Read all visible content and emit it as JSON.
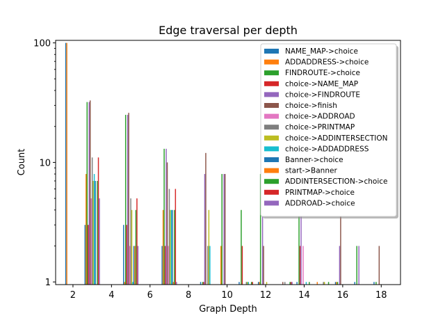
{
  "chart_data": {
    "type": "bar",
    "title": "Edge traversal per depth",
    "xlabel": "Graph Depth",
    "ylabel": "Count",
    "yscale": "log",
    "xlim": [
      1.1,
      19.0
    ],
    "ylim": [
      0.95,
      105
    ],
    "x_ticks": [
      2,
      4,
      6,
      8,
      10,
      12,
      14,
      16,
      18
    ],
    "y_ticks": [
      1,
      10,
      100
    ],
    "grid": false,
    "legend_position": "top-right",
    "series": [
      {
        "name": "NAME_MAP->choice",
        "color": "#1f77b4",
        "points": [
          [
            2,
            100
          ],
          [
            3,
            3
          ],
          [
            5,
            3
          ],
          [
            7,
            2
          ],
          [
            9,
            1
          ],
          [
            11,
            1
          ],
          [
            12,
            1
          ],
          [
            14,
            1
          ],
          [
            16,
            1
          ],
          [
            17,
            1
          ],
          [
            18,
            1
          ]
        ]
      },
      {
        "name": "ADDADDRESS->choice",
        "color": "#ff7f0e",
        "points": [
          [
            2,
            100
          ],
          [
            3,
            8
          ],
          [
            5,
            1
          ],
          [
            7,
            4
          ],
          [
            10,
            2
          ],
          [
            12,
            1
          ],
          [
            15,
            1
          ],
          [
            16,
            1
          ]
        ]
      },
      {
        "name": "FINDROUTE->choice",
        "color": "#2ca02c",
        "points": [
          [
            3,
            32
          ],
          [
            5,
            25
          ],
          [
            7,
            13
          ],
          [
            9,
            1
          ],
          [
            10,
            8
          ],
          [
            11,
            4
          ],
          [
            12,
            8
          ],
          [
            14,
            8
          ],
          [
            16,
            1
          ],
          [
            17,
            2
          ],
          [
            18,
            1
          ]
        ]
      },
      {
        "name": "choice->NAME_MAP",
        "color": "#d62728",
        "points": [
          [
            3,
            3
          ],
          [
            5,
            3
          ],
          [
            7,
            2
          ],
          [
            9,
            1
          ],
          [
            11,
            2
          ],
          [
            14,
            2
          ]
        ]
      },
      {
        "name": "choice->FINDROUTE",
        "color": "#9467bd",
        "points": [
          [
            3,
            32
          ],
          [
            5,
            25
          ],
          [
            7,
            13
          ],
          [
            9,
            8
          ],
          [
            10,
            8
          ],
          [
            12,
            8
          ],
          [
            14,
            8
          ],
          [
            16,
            2
          ],
          [
            17,
            2
          ]
        ]
      },
      {
        "name": "choice->finish",
        "color": "#8c564b",
        "points": [
          [
            3,
            33
          ],
          [
            5,
            26
          ],
          [
            7,
            10
          ],
          [
            9,
            12
          ],
          [
            10,
            8
          ],
          [
            12,
            2
          ],
          [
            13,
            1
          ],
          [
            16,
            4
          ],
          [
            18,
            2
          ]
        ]
      },
      {
        "name": "choice->ADDROAD",
        "color": "#e377c2",
        "points": [
          [
            3,
            5
          ],
          [
            5,
            2
          ],
          [
            7,
            2
          ],
          [
            14,
            2
          ]
        ]
      },
      {
        "name": "choice->PRINTMAP",
        "color": "#7f7f7f",
        "points": [
          [
            3,
            11
          ],
          [
            5,
            5
          ],
          [
            7,
            6
          ],
          [
            9,
            2
          ],
          [
            11,
            1
          ],
          [
            13,
            1
          ],
          [
            15,
            1
          ]
        ]
      },
      {
        "name": "choice->ADDINTERSECTION",
        "color": "#bcbd22",
        "points": [
          [
            3,
            7
          ],
          [
            5,
            4
          ],
          [
            7,
            4
          ],
          [
            9,
            4
          ],
          [
            11,
            1
          ],
          [
            12,
            1
          ],
          [
            15,
            1
          ]
        ]
      },
      {
        "name": "choice->ADDADDRESS",
        "color": "#17becf",
        "points": [
          [
            3,
            8
          ],
          [
            5,
            1
          ],
          [
            7,
            4
          ],
          [
            9,
            2
          ],
          [
            11,
            1
          ],
          [
            14,
            1
          ]
        ]
      },
      {
        "name": "Banner->choice",
        "color": "#1f77b4",
        "points": [
          [
            3,
            7
          ],
          [
            5,
            2
          ],
          [
            7,
            4
          ]
        ]
      },
      {
        "name": "start->Banner",
        "color": "#ff7f0e",
        "points": [
          [
            5,
            2
          ],
          [
            7,
            1
          ]
        ]
      },
      {
        "name": "ADDINTERSECTION->choice",
        "color": "#2ca02c",
        "points": [
          [
            3,
            7
          ],
          [
            5,
            4
          ],
          [
            7,
            4
          ],
          [
            11,
            1
          ],
          [
            13,
            1
          ],
          [
            14,
            1
          ],
          [
            15,
            1
          ]
        ]
      },
      {
        "name": "PRINTMAP->choice",
        "color": "#d62728",
        "points": [
          [
            3,
            11
          ],
          [
            5,
            5
          ],
          [
            7,
            6
          ],
          [
            11,
            1
          ],
          [
            13,
            1
          ]
        ]
      },
      {
        "name": "ADDROAD->choice",
        "color": "#9467bd",
        "points": [
          [
            3,
            5
          ],
          [
            5,
            2
          ],
          [
            7,
            1
          ],
          [
            13,
            1
          ]
        ]
      }
    ]
  }
}
